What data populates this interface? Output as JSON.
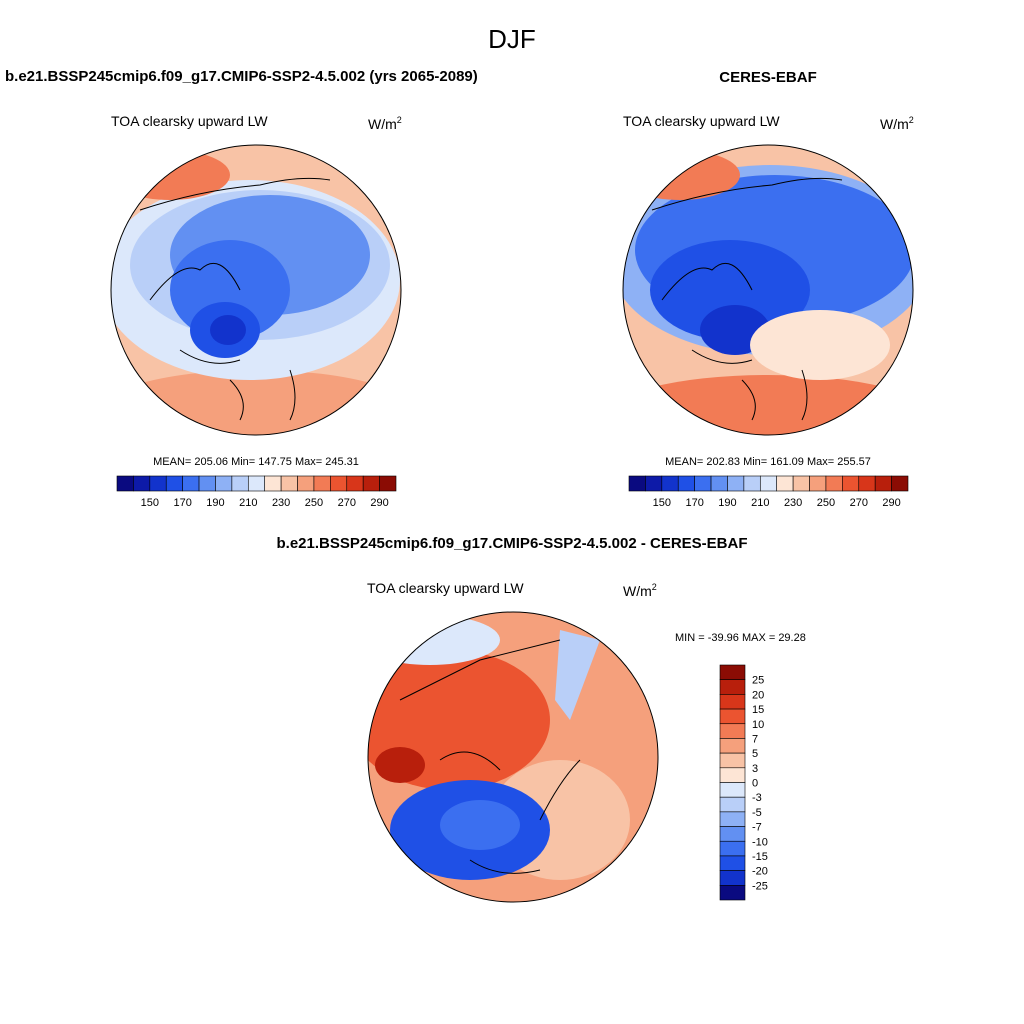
{
  "title": "DJF",
  "panels": [
    {
      "title": "b.e21.BSSP245cmip6.f09_g17.CMIP6-SSP2-4.5.002 (yrs 2065-2089)",
      "variable": "TOA clearsky upward LW",
      "units": {
        "base": "W/m",
        "sup": "2"
      },
      "stats": "MEAN= 205.06  Min= 147.75  Max= 245.31",
      "colorbar_labels": [
        150,
        170,
        190,
        210,
        230,
        250,
        270,
        290
      ]
    },
    {
      "title": "CERES-EBAF",
      "variable": "TOA clearsky upward LW",
      "units": {
        "base": "W/m",
        "sup": "2"
      },
      "stats": "MEAN= 202.83  Min= 161.09  Max= 255.57",
      "colorbar_labels": [
        150,
        170,
        190,
        210,
        230,
        250,
        270,
        290
      ]
    }
  ],
  "colorbar_colors": [
    "#0a0a80",
    "#0d1aa8",
    "#1233cc",
    "#1f50e6",
    "#3b6ff0",
    "#6290f2",
    "#8eb1f5",
    "#b9cff8",
    "#dce8fb",
    "#fde5d5",
    "#f8c3a6",
    "#f5a07c",
    "#f27b55",
    "#eb5430",
    "#d8361a",
    "#b81f0c",
    "#8b0c04"
  ],
  "difference": {
    "title": "b.e21.BSSP245cmip6.f09_g17.CMIP6-SSP2-4.5.002 - CERES-EBAF",
    "variable": "TOA clearsky upward LW",
    "units": {
      "base": "W/m",
      "sup": "2"
    },
    "stats": "MIN = -39.96 MAX =  29.28",
    "colorbar_labels": [
      25,
      20,
      15,
      10,
      7,
      5,
      3,
      0,
      -3,
      -5,
      -7,
      -10,
      -15,
      -20,
      -25
    ],
    "colorbar_colors": [
      "#8b0c04",
      "#b81f0c",
      "#d8361a",
      "#eb5430",
      "#f27b55",
      "#f5a07c",
      "#f8c3a6",
      "#fde5d5",
      "#dce8fb",
      "#b9cff8",
      "#8eb1f5",
      "#6290f2",
      "#3b6ff0",
      "#1f50e6",
      "#1233cc",
      "#0a0a80"
    ]
  }
}
